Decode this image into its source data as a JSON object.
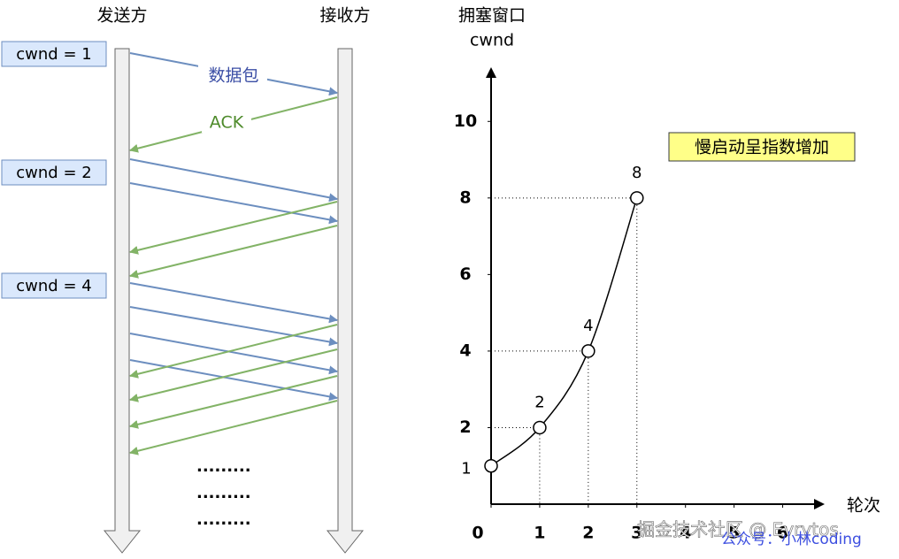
{
  "diagram": {
    "sender": "发送方",
    "receiver": "接收方",
    "cwnd_labels": [
      "cwnd = 1",
      "cwnd = 2",
      "cwnd = 4"
    ],
    "packet_label": "数据包",
    "ack_label": "ACK",
    "ellipsis": [
      ".........",
      ".........",
      "........."
    ]
  },
  "chart_data": {
    "type": "line",
    "y_label": [
      "拥塞窗口",
      "cwnd"
    ],
    "x_label": "轮次",
    "annotation": "慢启动呈指数增加",
    "series": [
      {
        "x": [
          0,
          1,
          2,
          3
        ],
        "values": [
          1,
          2,
          4,
          8
        ],
        "color": "#000000"
      }
    ],
    "xlim": [
      0,
      6.5
    ],
    "ylim": [
      0,
      11
    ],
    "xticks": [
      0,
      1,
      2,
      3,
      4,
      5,
      6
    ],
    "yticks": [
      2,
      4,
      6,
      8,
      10
    ]
  },
  "watermark": [
    "掘金技术社区 @ Evrytos",
    "公众号：小林coding"
  ]
}
